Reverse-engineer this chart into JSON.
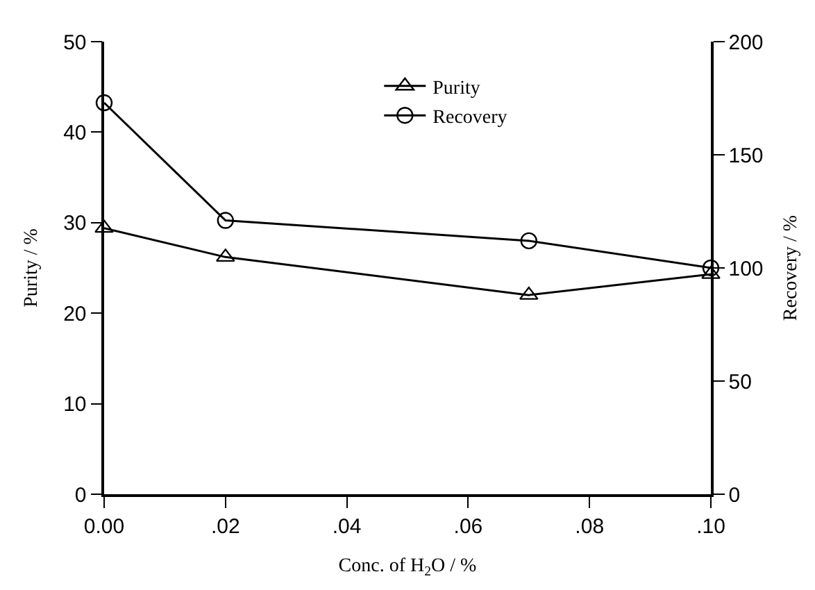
{
  "chart_data": {
    "type": "line",
    "xlabel": "Conc. of H$_{2}$O / %",
    "ylabel": "Purity / %",
    "y2label": "Recovery / %",
    "x": [
      0.0,
      0.02,
      0.07,
      0.1
    ],
    "series": [
      {
        "name": "Purity",
        "color": "#000000",
        "marker": "triangle",
        "values": [
          29.4,
          26.2,
          22.0,
          24.3
        ]
      },
      {
        "name": "Recovery",
        "color": "#000000",
        "marker": "circle",
        "axis": "y2",
        "values": [
          173,
          121,
          112,
          100
        ]
      }
    ],
    "xlim": [
      0.0,
      0.1
    ],
    "xticks": [
      {
        "value": 0.0,
        "label": "0.00"
      },
      {
        "value": 0.02,
        "label": ".02"
      },
      {
        "value": 0.04,
        "label": ".04"
      },
      {
        "value": 0.06,
        "label": ".06"
      },
      {
        "value": 0.08,
        "label": ".08"
      },
      {
        "value": 0.1,
        "label": ".10"
      }
    ],
    "ylim": [
      0,
      50
    ],
    "yticks": [
      0,
      10,
      20,
      30,
      40,
      50
    ],
    "y2lim": [
      0,
      200
    ],
    "y2ticks": [
      0,
      50,
      100,
      150,
      200
    ],
    "legend": "top right",
    "line_style": "solid"
  }
}
